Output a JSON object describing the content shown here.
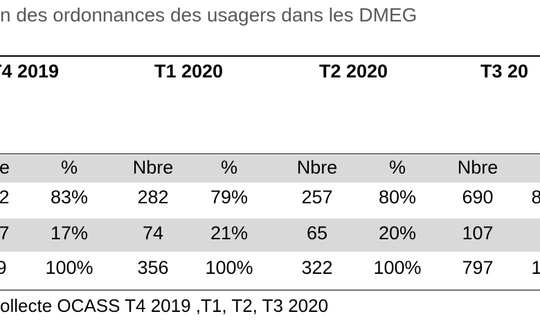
{
  "title": "n des ordonnances des usagers dans les DMEG",
  "periods": [
    "T4 2019",
    "T1 2020",
    "T2 2020",
    "T3 20"
  ],
  "subheaders": [
    "re",
    "%",
    "Nbre",
    "%",
    "Nbre",
    "%",
    "Nbre"
  ],
  "rows": [
    [
      "2",
      "83%",
      "282",
      "79%",
      "257",
      "80%",
      "690",
      "8"
    ],
    [
      "7",
      "17%",
      "74",
      "21%",
      "65",
      "20%",
      "107",
      ""
    ],
    [
      "9",
      "100%",
      "356",
      "100%",
      "322",
      "100%",
      "797",
      "1"
    ]
  ],
  "source": "ollecte OCASS T4 2019 ,T1, T2, T3 2020"
}
